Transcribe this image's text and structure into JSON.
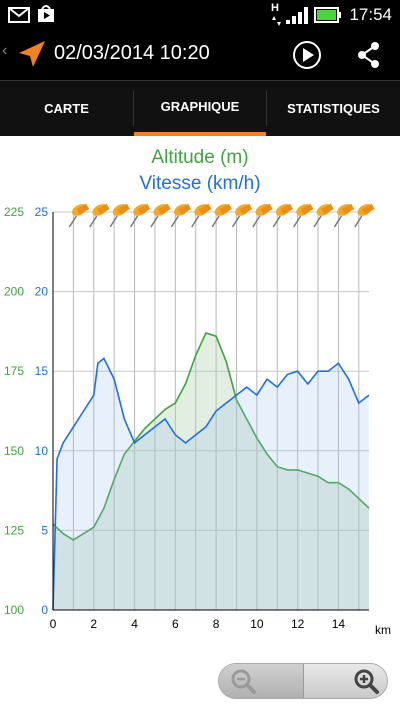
{
  "status_bar": {
    "time": "17:54",
    "network": "H"
  },
  "app_bar": {
    "back": "‹",
    "title": "02/03/2014 10:20"
  },
  "tabs": [
    {
      "label": "CARTE",
      "selected": false
    },
    {
      "label": "GRAPHIQUE",
      "selected": true
    },
    {
      "label": "STATISTIQUES",
      "selected": false
    }
  ],
  "colors": {
    "accent": "#f58220",
    "altitude": "#3fa33f",
    "speed": "#1f6fe0"
  },
  "chart_data": {
    "type": "area",
    "title": "Altitude (m)",
    "subtitle": "Vitesse (km/h)",
    "xlabel": "km",
    "xlim": [
      0,
      15.5
    ],
    "x_ticks": [
      "0",
      "2",
      "4",
      "6",
      "8",
      "10",
      "12",
      "14"
    ],
    "y_left": {
      "label": "Altitude (m)",
      "ticks": [
        "100",
        "125",
        "150",
        "175",
        "200",
        "225"
      ],
      "lim": [
        100,
        225
      ]
    },
    "y_right": {
      "label": "Vitesse (km/h)",
      "ticks": [
        "0",
        "5",
        "10",
        "15",
        "20",
        "25"
      ],
      "lim": [
        0,
        25
      ]
    },
    "grid": true,
    "pin_count": 15,
    "series": [
      {
        "name": "Altitude (m)",
        "axis": "left",
        "x": [
          0,
          0.5,
          1.0,
          1.5,
          2.0,
          2.5,
          3.0,
          3.5,
          4.0,
          4.5,
          5.0,
          5.5,
          6.0,
          6.5,
          7.0,
          7.5,
          8.0,
          8.5,
          9.0,
          9.5,
          10.0,
          10.5,
          11.0,
          11.5,
          12.0,
          12.5,
          13.0,
          13.5,
          14.0,
          14.5,
          15.0,
          15.5
        ],
        "values": [
          127,
          124,
          122,
          124,
          126,
          132,
          141,
          149,
          153,
          157,
          160,
          163,
          165,
          171,
          180,
          187,
          186,
          178,
          166,
          160,
          154,
          149,
          145,
          144,
          144,
          143,
          142,
          140,
          140,
          138,
          135,
          132
        ]
      },
      {
        "name": "Vitesse (km/h)",
        "axis": "right",
        "x": [
          0,
          0.2,
          0.5,
          1.0,
          1.5,
          2.0,
          2.2,
          2.5,
          3.0,
          3.5,
          4.0,
          4.5,
          5.0,
          5.5,
          6.0,
          6.5,
          7.0,
          7.5,
          8.0,
          8.5,
          9.0,
          9.5,
          10.0,
          10.5,
          11.0,
          11.5,
          12.0,
          12.5,
          13.0,
          13.5,
          14.0,
          14.5,
          15.0,
          15.5
        ],
        "values": [
          0,
          9.5,
          10.5,
          11.5,
          12.5,
          13.5,
          15.5,
          15.8,
          14.5,
          12,
          10.5,
          11,
          11.5,
          12,
          11,
          10.5,
          11,
          11.5,
          12.5,
          13,
          13.5,
          14,
          13.5,
          14.5,
          14,
          14.8,
          15,
          14.2,
          15,
          15,
          15.5,
          14.5,
          13,
          13.5
        ]
      }
    ]
  },
  "zoom": {
    "out_label": "zoom out",
    "in_label": "zoom in"
  }
}
